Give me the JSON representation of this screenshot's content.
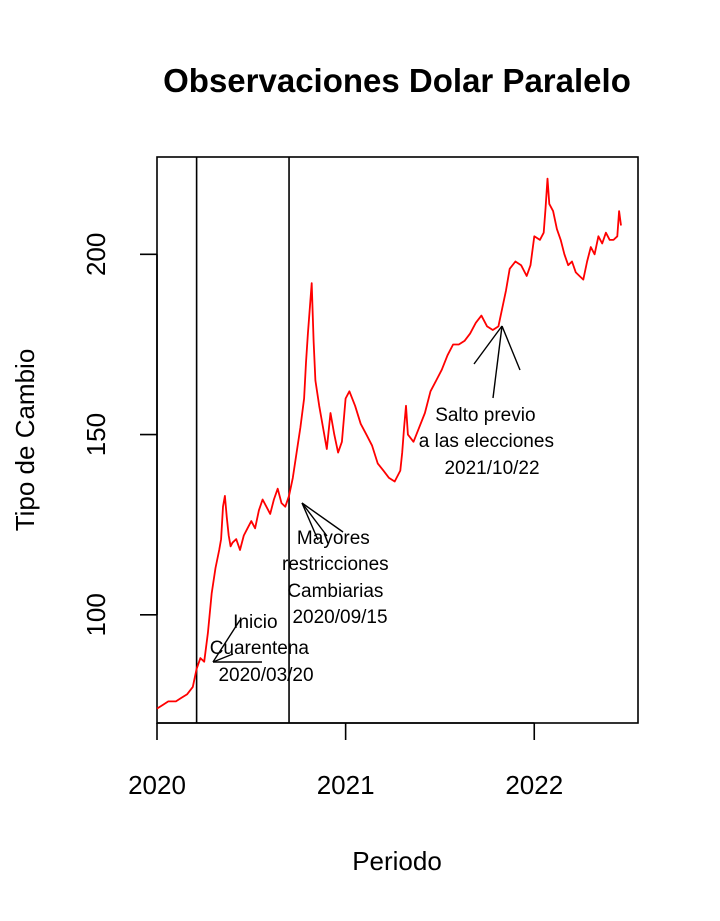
{
  "chart_data": {
    "type": "line",
    "title": "Observaciones Dolar Paralelo",
    "xlabel": "Periodo",
    "ylabel": "Tipo de Cambio",
    "xlim": [
      2020.0,
      2022.55
    ],
    "ylim": [
      70,
      227
    ],
    "x_ticks": [
      {
        "value": 2020,
        "label": "2020"
      },
      {
        "value": 2021,
        "label": "2021"
      },
      {
        "value": 2022,
        "label": "2022"
      }
    ],
    "y_ticks": [
      {
        "value": 100,
        "label": "100"
      },
      {
        "value": 150,
        "label": "150"
      },
      {
        "value": 200,
        "label": "200"
      }
    ],
    "grid": false,
    "legend": "none",
    "series": [
      {
        "color": "#ff0000",
        "x": [
          2020.0,
          2020.03,
          2020.06,
          2020.1,
          2020.13,
          2020.16,
          2020.19,
          2020.21,
          2020.23,
          2020.25,
          2020.27,
          2020.29,
          2020.31,
          2020.33,
          2020.34,
          2020.35,
          2020.36,
          2020.37,
          2020.38,
          2020.39,
          2020.4,
          2020.42,
          2020.44,
          2020.46,
          2020.48,
          2020.5,
          2020.52,
          2020.54,
          2020.56,
          2020.58,
          2020.6,
          2020.62,
          2020.64,
          2020.66,
          2020.68,
          2020.7,
          2020.72,
          2020.74,
          2020.76,
          2020.78,
          2020.79,
          2020.8,
          2020.81,
          2020.82,
          2020.83,
          2020.84,
          2020.86,
          2020.88,
          2020.9,
          2020.92,
          2020.94,
          2020.96,
          2020.98,
          2021.0,
          2021.02,
          2021.05,
          2021.08,
          2021.11,
          2021.14,
          2021.17,
          2021.2,
          2021.23,
          2021.26,
          2021.29,
          2021.3,
          2021.31,
          2021.32,
          2021.33,
          2021.36,
          2021.39,
          2021.42,
          2021.45,
          2021.48,
          2021.51,
          2021.54,
          2021.57,
          2021.6,
          2021.63,
          2021.66,
          2021.69,
          2021.72,
          2021.75,
          2021.78,
          2021.81,
          2021.83,
          2021.85,
          2021.87,
          2021.9,
          2021.93,
          2021.96,
          2021.98,
          2022.0,
          2022.03,
          2022.05,
          2022.06,
          2022.07,
          2022.08,
          2022.1,
          2022.12,
          2022.14,
          2022.16,
          2022.18,
          2022.2,
          2022.22,
          2022.24,
          2022.26,
          2022.28,
          2022.3,
          2022.32,
          2022.34,
          2022.36,
          2022.38,
          2022.4,
          2022.42,
          2022.44,
          2022.45,
          2022.46
        ],
        "y": [
          74,
          75,
          76,
          76,
          77,
          78,
          80,
          85,
          88,
          87,
          95,
          106,
          113,
          118,
          121,
          130,
          133,
          127,
          122,
          119,
          120,
          121,
          118,
          122,
          124,
          126,
          124,
          129,
          132,
          130,
          128,
          132,
          135,
          131,
          130,
          133,
          138,
          145,
          152,
          160,
          170,
          178,
          185,
          192,
          176,
          165,
          158,
          152,
          146,
          156,
          150,
          145,
          148,
          160,
          162,
          158,
          153,
          150,
          147,
          142,
          140,
          138,
          137,
          140,
          145,
          152,
          158,
          150,
          148,
          152,
          156,
          162,
          165,
          168,
          172,
          175,
          175,
          176,
          178,
          181,
          183,
          180,
          179,
          180,
          185,
          190,
          196,
          198,
          197,
          194,
          197,
          205,
          204,
          206,
          213,
          221,
          214,
          212,
          207,
          204,
          200,
          197,
          198,
          195,
          194,
          193,
          198,
          202,
          200,
          205,
          203,
          206,
          204,
          204,
          205,
          212,
          208
        ]
      }
    ],
    "vlines": [
      2020.21,
      2020.7
    ],
    "annotations": [
      {
        "lines": [
          "Inicio",
          "Cuarentena",
          "2020/03/20"
        ]
      },
      {
        "lines": [
          "Mayores",
          "restricciones",
          "Cambiarias",
          "2020/09/15"
        ]
      },
      {
        "lines": [
          "Salto previo",
          "a las elecciones",
          "2021/10/22"
        ]
      }
    ]
  }
}
